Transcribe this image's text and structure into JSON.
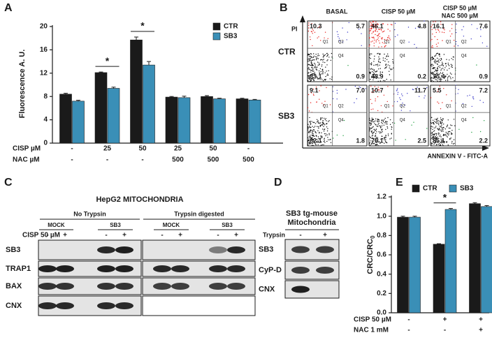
{
  "panel_labels": [
    "A",
    "B",
    "C",
    "D",
    "E"
  ],
  "chart_data": [
    {
      "type": "bar",
      "ylabel": "Fluorescence A. U.",
      "series": [
        {
          "name": "CTR",
          "color": "#1a1a1a",
          "values": [
            8.4,
            12.1,
            17.7,
            7.9,
            8.0,
            7.6
          ],
          "errors": [
            0.15,
            0.1,
            0.5,
            0.1,
            0.15,
            0.1
          ]
        },
        {
          "name": "SB3",
          "color": "#3a8fb7",
          "values": [
            7.2,
            9.4,
            13.4,
            7.8,
            7.6,
            7.4
          ],
          "errors": [
            0.15,
            0.2,
            0.6,
            0.25,
            0.1,
            0.1
          ]
        }
      ],
      "ylim": [
        0,
        20
      ],
      "yticks": [
        0,
        4,
        8,
        12,
        16,
        20
      ],
      "significance": [
        null,
        "*",
        "*",
        null,
        null,
        null
      ],
      "conditions": [
        {
          "name": "CISP µM",
          "values": [
            "-",
            "25",
            "50",
            "25",
            "50",
            "-"
          ]
        },
        {
          "name": "NAC µM",
          "values": [
            "-",
            "-",
            "-",
            "500",
            "500",
            "500"
          ]
        }
      ]
    },
    {
      "type": "bar",
      "ylabel": "CRC/CRC",
      "ylabel_sub": "0",
      "series": [
        {
          "name": "CTR",
          "color": "#1a1a1a",
          "values": [
            0.99,
            0.71,
            1.13
          ],
          "errors": [
            0.01,
            0.005,
            0.01
          ]
        },
        {
          "name": "SB3",
          "color": "#3a8fb7",
          "values": [
            0.99,
            1.07,
            1.1
          ],
          "errors": [
            0.01,
            0.01,
            0.01
          ]
        }
      ],
      "ylim": [
        0,
        1.2
      ],
      "yticks": [
        {
          "value": 0,
          "label": "0.0"
        },
        0.2,
        0.4,
        0.6,
        0.8,
        {
          "value": 1,
          "label": "1.0"
        },
        1.2
      ],
      "significance": [
        null,
        "*",
        null
      ],
      "conditions": [
        {
          "name": "CISP 50 µM",
          "values": [
            "-",
            "+",
            "+"
          ]
        },
        {
          "name": "NAC  1 mM",
          "values": [
            "-",
            "-",
            "+"
          ]
        }
      ]
    }
  ],
  "flow": {
    "y_label": "PI",
    "x_label": "ANNEXIN V - FITC-A",
    "columns": [
      [
        "BASAL"
      ],
      [
        "CISP 50 µM"
      ],
      [
        "CISP 50 µM",
        "NAC 500 µM"
      ]
    ],
    "quadrant_labels": [
      "Q1",
      "Q2",
      "Q4"
    ],
    "rows": [
      {
        "name": "CTR",
        "plots": [
          [
            "10.3",
            "5.7",
            "83.1",
            "0.9"
          ],
          [
            "46.1",
            "4.8",
            "48.9",
            "0.2"
          ],
          [
            "16.1",
            "7.6",
            "75.4",
            "0.9"
          ]
        ]
      },
      {
        "name": "SB3",
        "plots": [
          [
            "9.1",
            "7.0",
            "82.1",
            "1.8"
          ],
          [
            "10.7",
            "11.7",
            "75.1",
            "2.5"
          ],
          [
            "5.5",
            "7.2",
            "85.1",
            "2.2"
          ]
        ]
      }
    ]
  },
  "blot_c": {
    "title": "HepG2 MITOCHONDRIA",
    "treatment": "CISP 50 µM",
    "groups": [
      {
        "name": "No Trypsin",
        "samples": [
          {
            "name": "MOCK",
            "lanes": [
              "-",
              "+"
            ]
          },
          {
            "name": "SB3",
            "lanes": [
              "-",
              "+"
            ]
          }
        ]
      },
      {
        "name": "Trypsin digested",
        "samples": [
          {
            "name": "MOCK",
            "lanes": [
              "-",
              "+"
            ]
          },
          {
            "name": "SB3",
            "lanes": [
              "-",
              "+"
            ]
          }
        ]
      }
    ],
    "rows": [
      "SB3",
      "TRAP1",
      "BAX",
      "CNX"
    ]
  },
  "blot_d": {
    "title": [
      "SB3 tg-mouse",
      "Mitochondria"
    ],
    "treatment": "Trypsin",
    "lanes": [
      "-",
      "+"
    ],
    "rows": [
      "SB3",
      "CyP-D",
      "CNX"
    ]
  }
}
